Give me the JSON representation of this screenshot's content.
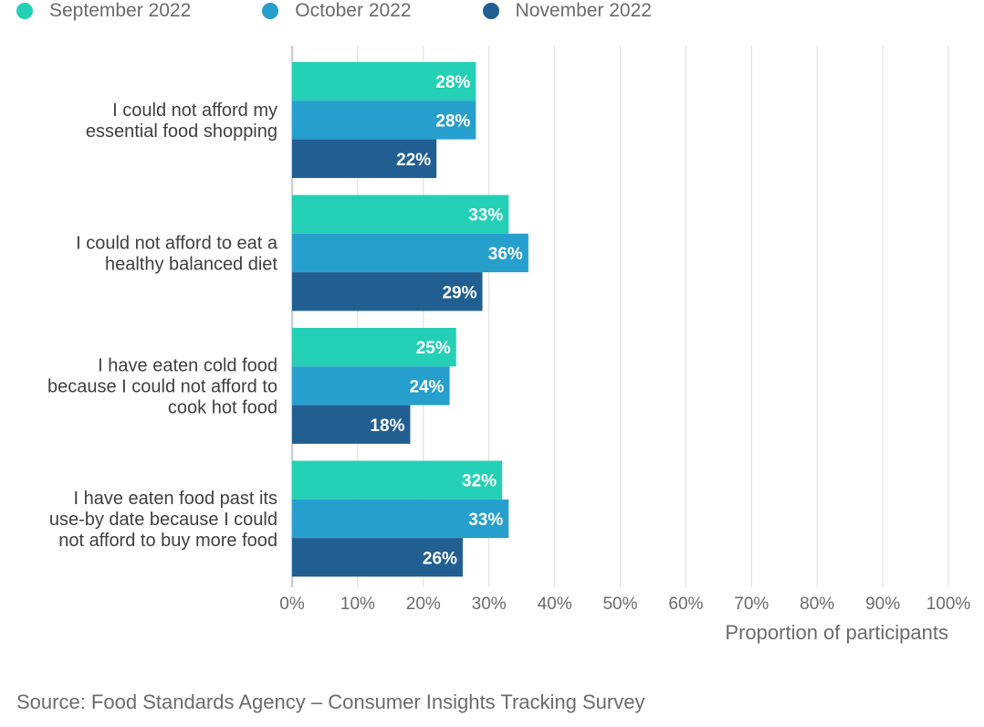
{
  "chart_data": {
    "type": "bar",
    "orientation": "horizontal",
    "title": "",
    "categories": [
      [
        "I could not afford my",
        "essential food shopping"
      ],
      [
        "I could not afford to eat a",
        "healthy balanced diet"
      ],
      [
        "I have eaten cold food",
        "because I could not afford to",
        "cook hot food"
      ],
      [
        "I have eaten food past its",
        "use-by date because I could",
        "not afford to buy more food"
      ]
    ],
    "series": [
      {
        "name": "September 2022",
        "color": "#24d0b5",
        "values": [
          28,
          33,
          25,
          32
        ]
      },
      {
        "name": "October 2022",
        "color": "#279fcc",
        "values": [
          28,
          36,
          24,
          33
        ]
      },
      {
        "name": "November 2022",
        "color": "#215f92",
        "values": [
          22,
          29,
          18,
          26
        ]
      }
    ],
    "value_format": "{v}%",
    "xlabel": "Proportion of participants",
    "ylabel": "",
    "xlim": [
      0,
      100
    ],
    "xticks": [
      0,
      10,
      20,
      30,
      40,
      50,
      60,
      70,
      80,
      90,
      100
    ],
    "xtick_labels": [
      "0%",
      "10%",
      "20%",
      "30%",
      "40%",
      "50%",
      "60%",
      "70%",
      "80%",
      "90%",
      "100%"
    ],
    "grid": true,
    "legend_position": "top-left"
  },
  "source": "Source: Food Standards Agency – Consumer Insights Tracking Survey"
}
